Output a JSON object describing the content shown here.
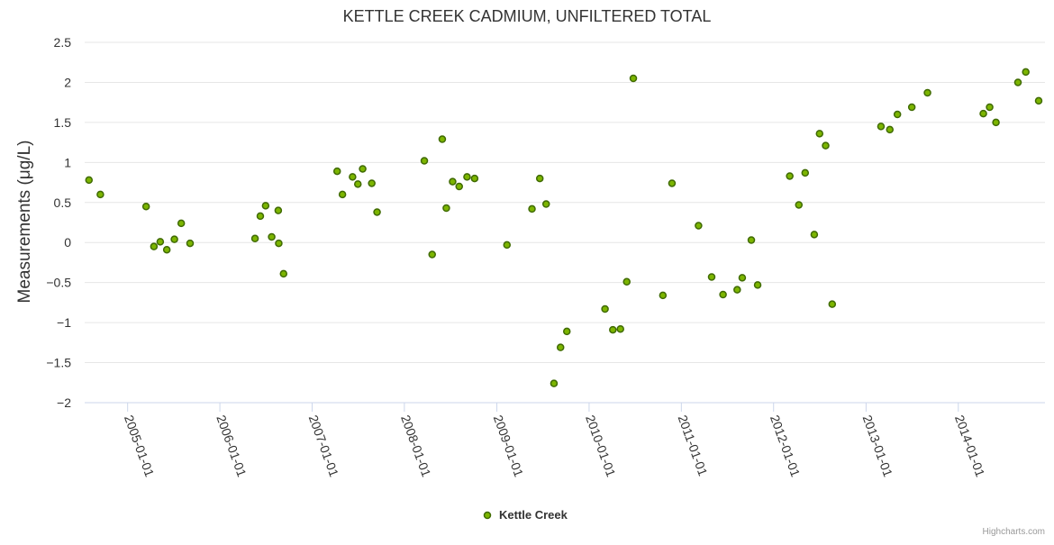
{
  "chart_data": {
    "type": "scatter",
    "title": "KETTLE CREEK CADMIUM, UNFILTERED TOTAL",
    "ylabel": "Measurements (μg/L)",
    "xlabel": "",
    "ylim": [
      -2,
      2.5
    ],
    "yticks": [
      -2,
      -1.5,
      -1,
      -0.5,
      0,
      0.5,
      1,
      1.5,
      2,
      2.5
    ],
    "ytick_labels": [
      "−2",
      "−1.5",
      "−1",
      "−0.5",
      "0",
      "0.5",
      "1",
      "1.5",
      "2",
      "2.5"
    ],
    "xlim": [
      "2004-07-15",
      "2014-12-10"
    ],
    "xticks": [
      "2005-01-01",
      "2006-01-01",
      "2007-01-01",
      "2008-01-01",
      "2009-01-01",
      "2010-01-01",
      "2011-01-01",
      "2012-01-01",
      "2013-01-01",
      "2014-01-01"
    ],
    "grid": "horizontal",
    "legend_position": "bottom-center",
    "marker_color": "#7cb500",
    "marker_edge_color": "#3f6a00",
    "series": [
      {
        "name": "Kettle Creek",
        "points": [
          {
            "x": "2004-08-01",
            "y": 0.78
          },
          {
            "x": "2004-09-15",
            "y": 0.6
          },
          {
            "x": "2005-03-15",
            "y": 0.45
          },
          {
            "x": "2005-04-15",
            "y": -0.05
          },
          {
            "x": "2005-05-10",
            "y": 0.01
          },
          {
            "x": "2005-06-05",
            "y": -0.09
          },
          {
            "x": "2005-07-05",
            "y": 0.04
          },
          {
            "x": "2005-08-01",
            "y": 0.24
          },
          {
            "x": "2005-09-05",
            "y": -0.01
          },
          {
            "x": "2006-05-20",
            "y": 0.05
          },
          {
            "x": "2006-06-10",
            "y": 0.33
          },
          {
            "x": "2006-07-01",
            "y": 0.46
          },
          {
            "x": "2006-07-25",
            "y": 0.07
          },
          {
            "x": "2006-08-20",
            "y": 0.4
          },
          {
            "x": "2006-08-22",
            "y": -0.01
          },
          {
            "x": "2006-09-10",
            "y": -0.39
          },
          {
            "x": "2007-04-10",
            "y": 0.89
          },
          {
            "x": "2007-05-01",
            "y": 0.6
          },
          {
            "x": "2007-06-10",
            "y": 0.82
          },
          {
            "x": "2007-07-01",
            "y": 0.73
          },
          {
            "x": "2007-07-20",
            "y": 0.92
          },
          {
            "x": "2007-08-25",
            "y": 0.74
          },
          {
            "x": "2007-09-15",
            "y": 0.38
          },
          {
            "x": "2008-03-20",
            "y": 1.02
          },
          {
            "x": "2008-04-20",
            "y": -0.15
          },
          {
            "x": "2008-05-30",
            "y": 1.29
          },
          {
            "x": "2008-06-15",
            "y": 0.43
          },
          {
            "x": "2008-07-10",
            "y": 0.76
          },
          {
            "x": "2008-08-05",
            "y": 0.7
          },
          {
            "x": "2008-09-05",
            "y": 0.82
          },
          {
            "x": "2008-10-05",
            "y": 0.8
          },
          {
            "x": "2009-02-10",
            "y": -0.03
          },
          {
            "x": "2009-05-20",
            "y": 0.42
          },
          {
            "x": "2009-06-20",
            "y": 0.8
          },
          {
            "x": "2009-07-15",
            "y": 0.48
          },
          {
            "x": "2009-08-15",
            "y": -1.76
          },
          {
            "x": "2009-09-10",
            "y": -1.31
          },
          {
            "x": "2009-10-05",
            "y": -1.11
          },
          {
            "x": "2010-03-05",
            "y": -0.83
          },
          {
            "x": "2010-04-05",
            "y": -1.09
          },
          {
            "x": "2010-05-05",
            "y": -1.08
          },
          {
            "x": "2010-05-30",
            "y": -0.49
          },
          {
            "x": "2010-06-25",
            "y": 2.05
          },
          {
            "x": "2010-10-20",
            "y": -0.66
          },
          {
            "x": "2010-11-25",
            "y": 0.74
          },
          {
            "x": "2011-03-10",
            "y": 0.21
          },
          {
            "x": "2011-05-01",
            "y": -0.43
          },
          {
            "x": "2011-06-15",
            "y": -0.65
          },
          {
            "x": "2011-08-10",
            "y": -0.59
          },
          {
            "x": "2011-08-30",
            "y": -0.44
          },
          {
            "x": "2011-10-05",
            "y": 0.03
          },
          {
            "x": "2011-10-30",
            "y": -0.53
          },
          {
            "x": "2012-03-05",
            "y": 0.83
          },
          {
            "x": "2012-04-10",
            "y": 0.47
          },
          {
            "x": "2012-05-05",
            "y": 0.87
          },
          {
            "x": "2012-06-10",
            "y": 0.1
          },
          {
            "x": "2012-07-01",
            "y": 1.36
          },
          {
            "x": "2012-07-25",
            "y": 1.21
          },
          {
            "x": "2012-08-20",
            "y": -0.77
          },
          {
            "x": "2013-03-01",
            "y": 1.45
          },
          {
            "x": "2013-04-05",
            "y": 1.41
          },
          {
            "x": "2013-05-05",
            "y": 1.6
          },
          {
            "x": "2013-07-01",
            "y": 1.69
          },
          {
            "x": "2013-09-01",
            "y": 1.87
          },
          {
            "x": "2014-04-10",
            "y": 1.61
          },
          {
            "x": "2014-05-05",
            "y": 1.69
          },
          {
            "x": "2014-05-30",
            "y": 1.5
          },
          {
            "x": "2014-08-25",
            "y": 2.0
          },
          {
            "x": "2014-09-25",
            "y": 2.13
          },
          {
            "x": "2014-11-15",
            "y": 1.77
          }
        ]
      }
    ]
  },
  "credit": "Highcharts.com"
}
